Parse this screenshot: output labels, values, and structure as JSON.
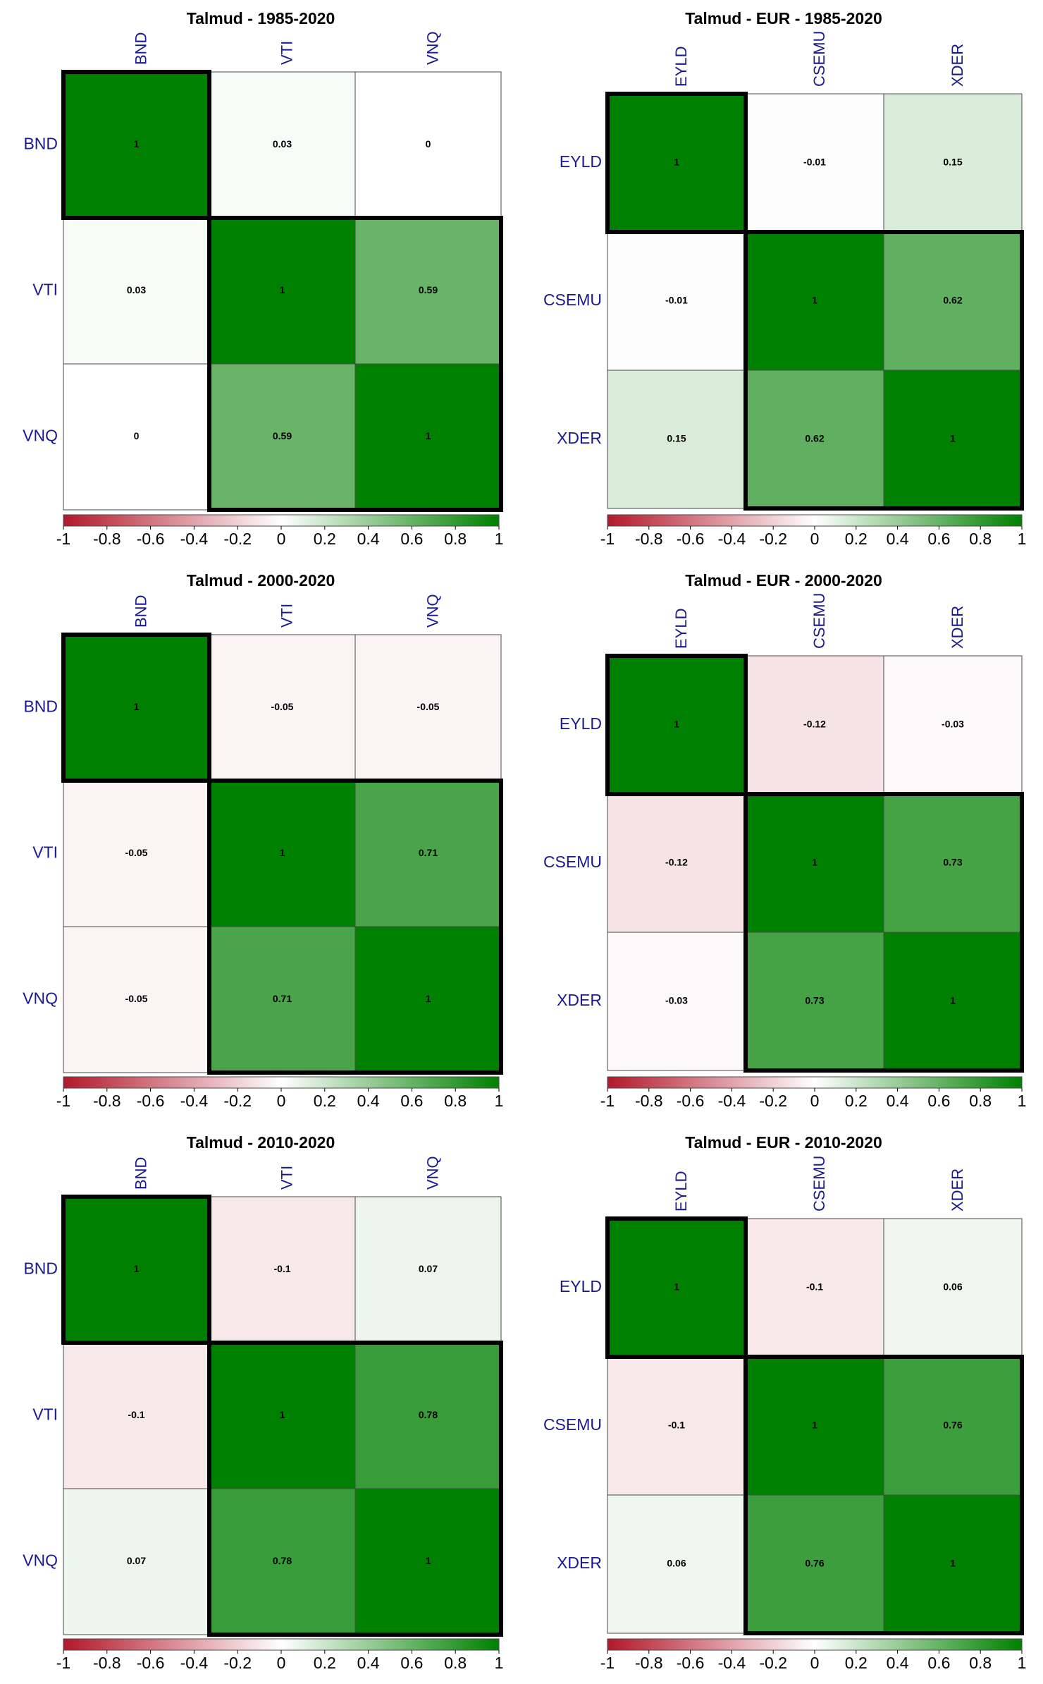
{
  "colors": {
    "negative": "#b2182b",
    "neutral": "#ffffff",
    "positive": "#008000",
    "cell_border": "#4a4a4a",
    "cluster_border": "#000000"
  },
  "colorbar": {
    "ticks": [
      "-1",
      "-0.8",
      "-0.6",
      "-0.4",
      "-0.2",
      "0",
      "0.2",
      "0.4",
      "0.6",
      "0.8",
      "1"
    ]
  },
  "chart_data": [
    {
      "type": "heatmap",
      "title": "Talmud - 1985-2020",
      "labels": [
        "BND",
        "VTI",
        "VNQ"
      ],
      "matrix": [
        [
          1,
          0.03,
          0
        ],
        [
          0.03,
          1,
          0.59
        ],
        [
          0,
          0.59,
          1
        ]
      ],
      "cells": [
        [
          "1",
          "0.03",
          "0"
        ],
        [
          "0.03",
          "1",
          "0.59"
        ],
        [
          "0",
          "0.59",
          "1"
        ]
      ],
      "clusters": [
        [
          0,
          0
        ],
        [
          1,
          2
        ]
      ],
      "value_range": [
        -1,
        1
      ]
    },
    {
      "type": "heatmap",
      "title": "Talmud - EUR - 1985-2020",
      "labels": [
        "EYLD",
        "CSEMU",
        "XDER"
      ],
      "matrix": [
        [
          1,
          -0.01,
          0.15
        ],
        [
          -0.01,
          1,
          0.62
        ],
        [
          0.15,
          0.62,
          1
        ]
      ],
      "cells": [
        [
          "1",
          "-0.01",
          "0.15"
        ],
        [
          "-0.01",
          "1",
          "0.62"
        ],
        [
          "0.15",
          "0.62",
          "1"
        ]
      ],
      "clusters": [
        [
          0,
          0
        ],
        [
          1,
          2
        ]
      ],
      "value_range": [
        -1,
        1
      ]
    },
    {
      "type": "heatmap",
      "title": "Talmud - 2000-2020",
      "labels": [
        "BND",
        "VTI",
        "VNQ"
      ],
      "matrix": [
        [
          1,
          -0.05,
          -0.05
        ],
        [
          -0.05,
          1,
          0.71
        ],
        [
          -0.05,
          0.71,
          1
        ]
      ],
      "cells": [
        [
          "1",
          "-0.05",
          "-0.05"
        ],
        [
          "-0.05",
          "1",
          "0.71"
        ],
        [
          "-0.05",
          "0.71",
          "1"
        ]
      ],
      "clusters": [
        [
          0,
          0
        ],
        [
          1,
          2
        ]
      ],
      "value_range": [
        -1,
        1
      ]
    },
    {
      "type": "heatmap",
      "title": "Talmud - EUR - 2000-2020",
      "labels": [
        "EYLD",
        "CSEMU",
        "XDER"
      ],
      "matrix": [
        [
          1,
          -0.12,
          -0.03
        ],
        [
          -0.12,
          1,
          0.73
        ],
        [
          -0.03,
          0.73,
          1
        ]
      ],
      "cells": [
        [
          "1",
          "-0.12",
          "-0.03"
        ],
        [
          "-0.12",
          "1",
          "0.73"
        ],
        [
          "-0.03",
          "0.73",
          "1"
        ]
      ],
      "clusters": [
        [
          0,
          0
        ],
        [
          1,
          2
        ]
      ],
      "value_range": [
        -1,
        1
      ]
    },
    {
      "type": "heatmap",
      "title": "Talmud - 2010-2020",
      "labels": [
        "BND",
        "VTI",
        "VNQ"
      ],
      "matrix": [
        [
          1,
          -0.1,
          0.07
        ],
        [
          -0.1,
          1,
          0.78
        ],
        [
          0.07,
          0.78,
          1
        ]
      ],
      "cells": [
        [
          "1",
          "-0.1",
          "0.07"
        ],
        [
          "-0.1",
          "1",
          "0.78"
        ],
        [
          "0.07",
          "0.78",
          "1"
        ]
      ],
      "clusters": [
        [
          0,
          0
        ],
        [
          1,
          2
        ]
      ],
      "value_range": [
        -1,
        1
      ]
    },
    {
      "type": "heatmap",
      "title": "Talmud - EUR - 2010-2020",
      "labels": [
        "EYLD",
        "CSEMU",
        "XDER"
      ],
      "matrix": [
        [
          1,
          -0.1,
          0.06
        ],
        [
          -0.1,
          1,
          0.76
        ],
        [
          0.06,
          0.76,
          1
        ]
      ],
      "cells": [
        [
          "1",
          "-0.1",
          "0.06"
        ],
        [
          "-0.1",
          "1",
          "0.76"
        ],
        [
          "0.06",
          "0.76",
          "1"
        ]
      ],
      "clusters": [
        [
          0,
          0
        ],
        [
          1,
          2
        ]
      ],
      "value_range": [
        -1,
        1
      ]
    }
  ]
}
